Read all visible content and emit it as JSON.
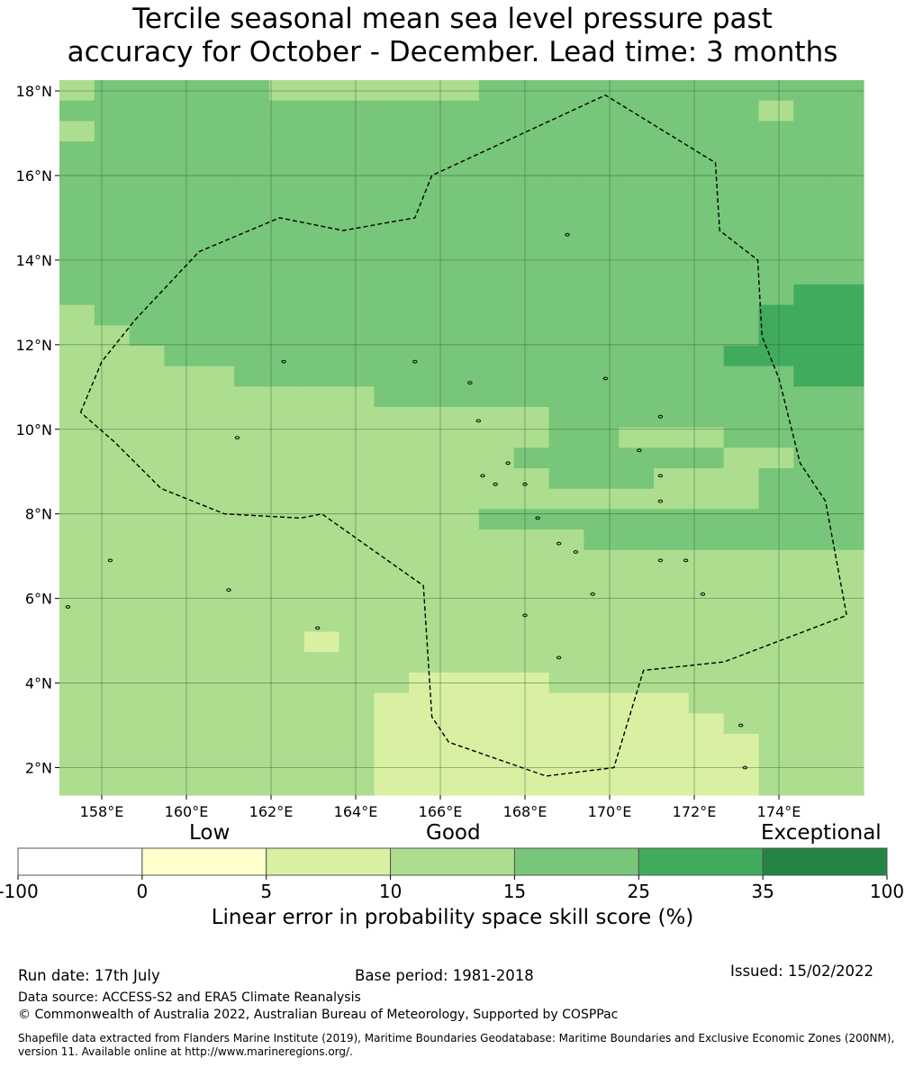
{
  "title": {
    "line1": "Tercile seasonal mean sea level pressure past",
    "line2": "accuracy for October - December. Lead time: 3 months"
  },
  "map": {
    "lon_range": [
      157,
      176
    ],
    "lat_range": [
      1.4,
      18.3
    ],
    "cell_size_deg": 0.83,
    "grid_lons": [
      158,
      160,
      162,
      164,
      166,
      168,
      170,
      172,
      174
    ],
    "grid_lats": [
      2,
      4,
      6,
      8,
      10,
      12,
      14,
      16,
      18
    ],
    "lon_tick_labels": [
      "158°E",
      "160°E",
      "162°E",
      "164°E",
      "166°E",
      "168°E",
      "170°E",
      "172°E",
      "174°E"
    ],
    "lat_tick_labels": [
      "2°N",
      "4°N",
      "6°N",
      "8°N",
      "10°N",
      "12°N",
      "14°N",
      "16°N",
      "18°N"
    ],
    "skill_grid_note": "rows from north to south; codes index legend.colors",
    "skill_grid": [
      "34444433333344444444444",
      "44444444444444444444344",
      "34444444444444444444444",
      "44444444444444444444444",
      "44444444444444444444444",
      "44444444444444444444444",
      "44444444444444444444444",
      "44444444444444444444444",
      "44444444444444444444444",
      "44444444444444444444444",
      "44444444444444444444455",
      "34444444444444444444555",
      "33444444444444444444555",
      "33344444444444444445555",
      "33333444444444444444455",
      "33333333344444444444444",
      "33333333333333444444444",
      "33333333333333443334444",
      "33333333333334444443344",
      "33333333333333444333444",
      "33333333333333333333444",
      "33333333333344444444444",
      "33333333333333344444444",
      "33333333333333333333333",
      "33333333333333333333333",
      "33333333333333333333333",
      "33333333333333333333333",
      "33333332333333333333333",
      "33333333333333333333333",
      "33333333332222333333333",
      "33333333322222222233333",
      "33333333322222222223333",
      "33333333322222222222333",
      "33333333322222222222333",
      "33333333322222222222333"
    ],
    "eez_boundary": [
      [
        157.5,
        10.4
      ],
      [
        158.0,
        11.6
      ],
      [
        158.8,
        12.6
      ],
      [
        160.3,
        14.2
      ],
      [
        162.2,
        15.0
      ],
      [
        163.7,
        14.7
      ],
      [
        165.4,
        15.0
      ],
      [
        165.8,
        16.0
      ],
      [
        169.9,
        17.9
      ],
      [
        172.5,
        16.3
      ],
      [
        172.6,
        14.7
      ],
      [
        173.5,
        14.0
      ],
      [
        173.6,
        12.2
      ],
      [
        174.0,
        11.2
      ],
      [
        174.5,
        9.2
      ],
      [
        175.1,
        8.3
      ],
      [
        175.6,
        5.6
      ],
      [
        172.7,
        4.5
      ],
      [
        170.8,
        4.3
      ],
      [
        170.1,
        2.0
      ],
      [
        168.5,
        1.8
      ],
      [
        166.2,
        2.6
      ],
      [
        165.8,
        3.2
      ],
      [
        165.6,
        6.3
      ],
      [
        163.2,
        8.0
      ],
      [
        162.7,
        7.9
      ],
      [
        160.9,
        8.0
      ],
      [
        159.4,
        8.6
      ],
      [
        158.3,
        9.7
      ],
      [
        157.5,
        10.4
      ]
    ],
    "islands": [
      [
        158.2,
        6.9
      ],
      [
        161.0,
        6.2
      ],
      [
        163.1,
        5.3
      ],
      [
        157.2,
        5.8
      ],
      [
        161.2,
        9.8
      ],
      [
        162.3,
        11.6
      ],
      [
        165.4,
        11.6
      ],
      [
        166.7,
        11.1
      ],
      [
        169.0,
        14.6
      ],
      [
        169.9,
        11.2
      ],
      [
        171.2,
        10.3
      ],
      [
        166.9,
        10.2
      ],
      [
        167.0,
        8.9
      ],
      [
        167.6,
        9.2
      ],
      [
        168.0,
        8.7
      ],
      [
        167.3,
        8.7
      ],
      [
        168.3,
        7.9
      ],
      [
        168.8,
        7.3
      ],
      [
        169.2,
        7.1
      ],
      [
        171.2,
        6.9
      ],
      [
        171.8,
        6.9
      ],
      [
        170.7,
        9.5
      ],
      [
        171.2,
        8.9
      ],
      [
        171.2,
        8.3
      ],
      [
        172.2,
        6.1
      ],
      [
        169.6,
        6.1
      ],
      [
        168.0,
        5.6
      ],
      [
        168.8,
        4.6
      ],
      [
        173.1,
        3.0
      ],
      [
        173.2,
        2.0
      ]
    ]
  },
  "legend": {
    "colors": [
      "#ffffff",
      "#ffffcc",
      "#d9f0a3",
      "#addd8e",
      "#78c679",
      "#41ab5d",
      "#238443"
    ],
    "tick_labels": [
      "-100",
      "0",
      "5",
      "10",
      "15",
      "25",
      "35",
      "100"
    ],
    "low": "Low",
    "good": "Good",
    "exceptional": "Exceptional",
    "title": "Linear error in probability space skill score (%)"
  },
  "footer": {
    "run_date": "Run date: 17th July",
    "base_period": "Base period: 1981-2018",
    "issued": "Issued: 15/02/2022",
    "data_source": "Data source: ACCESS-S2 and ERA5 Climate Reanalysis",
    "copyright": "© Commonwealth of Australia 2022, Australian Bureau of Meteorology, Supported by COSPPac",
    "shapefile_line1": "Shapefile data extracted from Flanders Marine Institute (2019), Maritime Boundaries Geodatabase: Maritime Boundaries and Exclusive Economic Zones (200NM),",
    "shapefile_line2": "version 11. Available online at http://www.marineregions.org/."
  }
}
